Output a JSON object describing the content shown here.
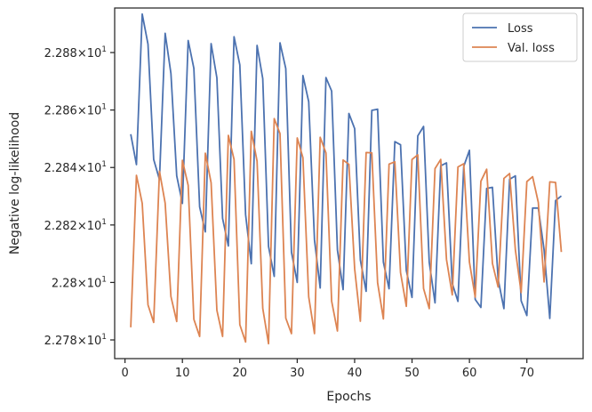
{
  "chart_data": {
    "type": "line",
    "xlabel": "Epochs",
    "ylabel": "Negative log-likelihood",
    "xlim": [
      -1.8,
      79.8
    ],
    "ylim": [
      22.7735,
      22.8955
    ],
    "x_ticks": [
      0,
      10,
      20,
      30,
      40,
      50,
      60,
      70
    ],
    "y_ticks": [
      {
        "value": 22.78,
        "mantissa": "2.278",
        "exponent": "1"
      },
      {
        "value": 22.8,
        "mantissa": "2.28",
        "exponent": "1"
      },
      {
        "value": 22.82,
        "mantissa": "2.282",
        "exponent": "1"
      },
      {
        "value": 22.84,
        "mantissa": "2.284",
        "exponent": "1"
      },
      {
        "value": 22.86,
        "mantissa": "2.286",
        "exponent": "1"
      },
      {
        "value": 22.88,
        "mantissa": "2.288",
        "exponent": "1"
      }
    ],
    "y_tick_times": "×",
    "y_tick_base": "10",
    "grid": false,
    "legend_position": "top-right",
    "x": [
      1,
      2,
      3,
      4,
      5,
      6,
      7,
      8,
      9,
      10,
      11,
      12,
      13,
      14,
      15,
      16,
      17,
      18,
      19,
      20,
      21,
      22,
      23,
      24,
      25,
      26,
      27,
      28,
      29,
      30,
      31,
      32,
      33,
      34,
      35,
      36,
      37,
      38,
      39,
      40,
      41,
      42,
      43,
      44,
      45,
      46,
      47,
      48,
      49,
      50,
      51,
      52,
      53,
      54,
      55,
      56,
      57,
      58,
      59,
      60,
      61,
      62,
      63,
      64,
      65,
      66,
      67,
      68,
      69,
      70,
      71,
      72,
      73,
      74,
      75,
      76
    ],
    "series": [
      {
        "name": "Loss",
        "color": "#4c72b0",
        "values": [
          22.8516,
          22.841,
          22.8934,
          22.8829,
          22.8428,
          22.8358,
          22.8867,
          22.8727,
          22.8371,
          22.8275,
          22.8842,
          22.8745,
          22.8263,
          22.8176,
          22.8831,
          22.8712,
          22.8223,
          22.8127,
          22.8855,
          22.8757,
          22.8236,
          22.8065,
          22.8825,
          22.8709,
          22.8125,
          22.8021,
          22.8834,
          22.8744,
          22.8105,
          22.8,
          22.872,
          22.8629,
          22.8148,
          22.7981,
          22.8713,
          22.8666,
          22.8113,
          22.7975,
          22.8588,
          22.8535,
          22.8078,
          22.7969,
          22.8599,
          22.8603,
          22.8071,
          22.7978,
          22.849,
          22.8479,
          22.8042,
          22.7948,
          22.851,
          22.8543,
          22.807,
          22.7929,
          22.8406,
          22.8416,
          22.7996,
          22.7934,
          22.8404,
          22.846,
          22.7941,
          22.7913,
          22.8327,
          22.8331,
          22.8011,
          22.7909,
          22.8359,
          22.8371,
          22.7936,
          22.7885,
          22.8259,
          22.8259,
          22.8113,
          22.7875,
          22.8285,
          22.8301
        ]
      },
      {
        "name": "Val. loss",
        "color": "#dd8452",
        "values": [
          22.7844,
          22.8373,
          22.8275,
          22.7922,
          22.7861,
          22.8387,
          22.8276,
          22.7951,
          22.7864,
          22.8425,
          22.8338,
          22.7872,
          22.7812,
          22.845,
          22.8347,
          22.7903,
          22.7812,
          22.8512,
          22.8428,
          22.7853,
          22.7793,
          22.8526,
          22.8422,
          22.791,
          22.7787,
          22.857,
          22.8518,
          22.7876,
          22.7822,
          22.8503,
          22.8434,
          22.795,
          22.7822,
          22.8505,
          22.8451,
          22.7935,
          22.7831,
          22.8426,
          22.8411,
          22.8047,
          22.7865,
          22.8452,
          22.8451,
          22.7999,
          22.7873,
          22.8412,
          22.842,
          22.8034,
          22.7917,
          22.8428,
          22.8444,
          22.7979,
          22.7909,
          22.8396,
          22.8428,
          22.808,
          22.7957,
          22.8402,
          22.8413,
          22.8071,
          22.7949,
          22.8352,
          22.8394,
          22.8066,
          22.7984,
          22.8362,
          22.8379,
          22.8113,
          22.7965,
          22.8351,
          22.8368,
          22.8278,
          22.8002,
          22.835,
          22.8348,
          22.8106
        ]
      }
    ]
  }
}
